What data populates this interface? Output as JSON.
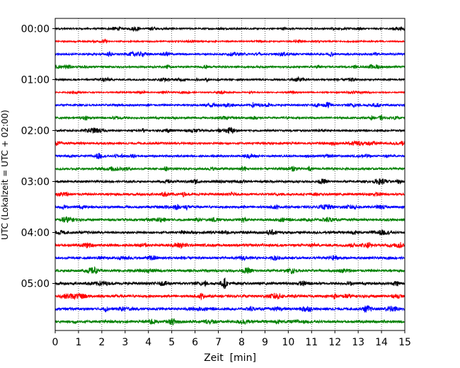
{
  "chart_data": {
    "type": "line",
    "title": "",
    "xlabel": "Zeit  [min]",
    "ylabel": "UTC (Lokalzeit = UTC + 02:00)",
    "xlim": [
      0,
      15
    ],
    "x_ticks": [
      "0",
      "1",
      "2",
      "3",
      "4",
      "5",
      "6",
      "7",
      "8",
      "9",
      "10",
      "11",
      "12",
      "13",
      "14",
      "15"
    ],
    "y_ticks": [
      "00:00",
      "01:00",
      "02:00",
      "03:00",
      "04:00",
      "05:00"
    ],
    "grid": "vertical dotted",
    "trace_interval_minutes": 15,
    "trace_colors": [
      "#000000",
      "#ff0000",
      "#0000ff",
      "#008000"
    ],
    "series": [
      {
        "start": "00:00",
        "amplitude": 0.35
      },
      {
        "start": "00:15",
        "amplitude": 0.3
      },
      {
        "start": "00:30",
        "amplitude": 0.4
      },
      {
        "start": "00:45",
        "amplitude": 0.4
      },
      {
        "start": "01:00",
        "amplitude": 0.35
      },
      {
        "start": "01:15",
        "amplitude": 0.25
      },
      {
        "start": "01:30",
        "amplitude": 0.4
      },
      {
        "start": "01:45",
        "amplitude": 0.4
      },
      {
        "start": "02:00",
        "amplitude": 0.4
      },
      {
        "start": "02:15",
        "amplitude": 0.45
      },
      {
        "start": "02:30",
        "amplitude": 0.4
      },
      {
        "start": "02:45",
        "amplitude": 0.45
      },
      {
        "start": "03:00",
        "amplitude": 0.45
      },
      {
        "start": "03:15",
        "amplitude": 0.5
      },
      {
        "start": "03:30",
        "amplitude": 0.5
      },
      {
        "start": "03:45",
        "amplitude": 0.5
      },
      {
        "start": "04:00",
        "amplitude": 0.5
      },
      {
        "start": "04:15",
        "amplitude": 0.55
      },
      {
        "start": "04:30",
        "amplitude": 0.5
      },
      {
        "start": "04:45",
        "amplitude": 0.5
      },
      {
        "start": "05:00",
        "amplitude": 0.55
      },
      {
        "start": "05:15",
        "amplitude": 0.55
      },
      {
        "start": "05:30",
        "amplitude": 0.55
      },
      {
        "start": "05:45",
        "amplitude": 0.55
      }
    ]
  }
}
